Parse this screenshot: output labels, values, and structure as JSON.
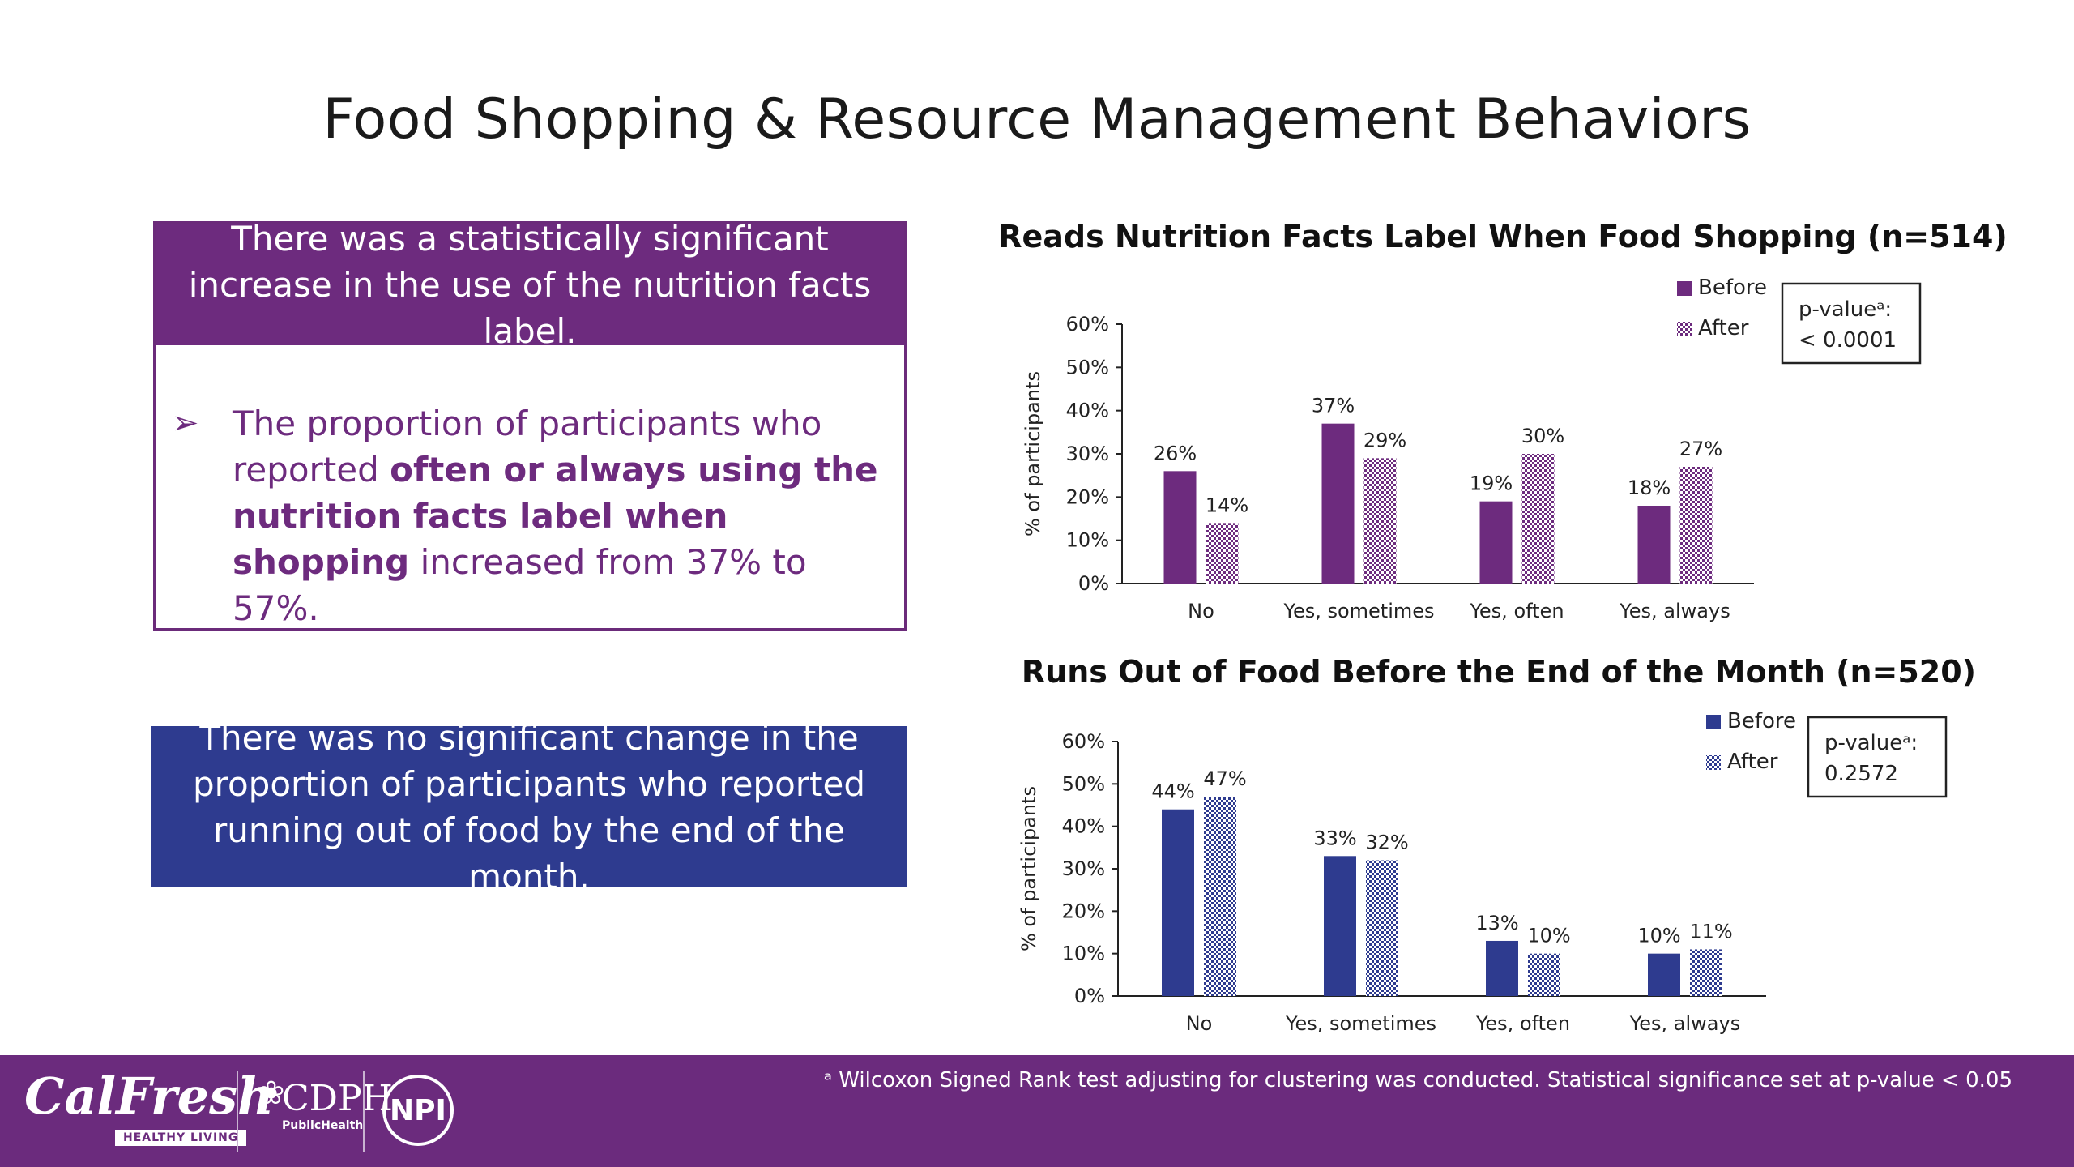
{
  "page": {
    "title": "Food Shopping & Resource Management Behaviors"
  },
  "box1": {
    "header": "There was a statistically significant increase in the use of the nutrition facts label.",
    "bullet_icon": "arrow-bullet",
    "text_before": "The proportion of participants who reported ",
    "text_bold": "often or always using the nutrition facts label when shopping",
    "text_after": " increased from 37% to 57%."
  },
  "box2": {
    "text": "There was no significant change in the proportion of participants who reported running out of food by the end of the month."
  },
  "chart_data": [
    {
      "type": "bar",
      "title": "Reads Nutrition Facts Label When Food Shopping (n=514)",
      "ylabel": "% of participants",
      "xlabel": "",
      "ylim": [
        0,
        60
      ],
      "yticks": [
        "0%",
        "10%",
        "20%",
        "30%",
        "40%",
        "50%",
        "60%"
      ],
      "categories": [
        "No",
        "Yes, sometimes",
        "Yes, often",
        "Yes, always"
      ],
      "series": [
        {
          "name": "Before",
          "values": [
            26,
            37,
            19,
            18
          ],
          "labels": [
            "26%",
            "37%",
            "19%",
            "18%"
          ],
          "color": "#6d2b7e",
          "pattern": "solid"
        },
        {
          "name": "After",
          "values": [
            14,
            29,
            30,
            27
          ],
          "labels": [
            "14%",
            "29%",
            "30%",
            "27%"
          ],
          "color": "#6d2b7e",
          "pattern": "checkered"
        }
      ],
      "pvalue_label": "p-valueᵃ:",
      "pvalue": "< 0.0001",
      "legend": "top-right",
      "grid": false
    },
    {
      "type": "bar",
      "title": "Runs Out of Food Before the End of the Month (n=520)",
      "ylabel": "% of participants",
      "xlabel": "",
      "ylim": [
        0,
        60
      ],
      "yticks": [
        "0%",
        "10%",
        "20%",
        "30%",
        "40%",
        "50%",
        "60%"
      ],
      "categories": [
        "No",
        "Yes, sometimes",
        "Yes, often",
        "Yes, always"
      ],
      "series": [
        {
          "name": "Before",
          "values": [
            44,
            33,
            13,
            10
          ],
          "labels": [
            "44%",
            "33%",
            "13%",
            "10%"
          ],
          "color": "#2e3b8f",
          "pattern": "solid"
        },
        {
          "name": "After",
          "values": [
            47,
            32,
            10,
            11
          ],
          "labels": [
            "47%",
            "32%",
            "10%",
            "11%"
          ],
          "color": "#2e3b8f",
          "pattern": "checkered"
        }
      ],
      "pvalue_label": "p-valueᵃ:",
      "pvalue": "0.2572",
      "legend": "top-right",
      "grid": false
    }
  ],
  "footer": {
    "footnote": "ᵃ Wilcoxon Signed Rank test adjusting for clustering was conducted. Statistical significance set at p-value < 0.05",
    "logo_calfresh": "CalFresh",
    "logo_calfresh_tag": "HEALTHY LIVING",
    "logo_cdph": "CDPH",
    "logo_cdph_sub": "PublicHealth",
    "logo_npi": "NPI"
  }
}
